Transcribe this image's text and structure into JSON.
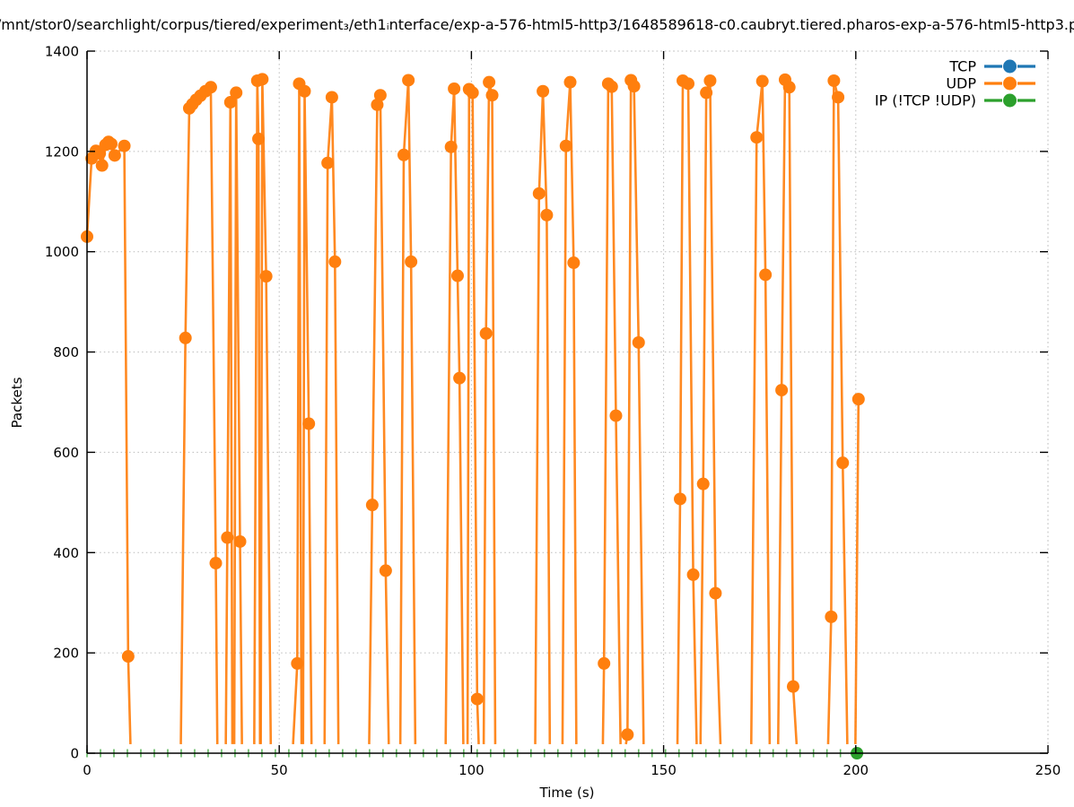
{
  "chart_data": {
    "type": "line",
    "title": "/mnt/stor0/searchlight/corpus/tiered/experiment₃/eth1ᵢnterface/exp-a-576-html5-http3/1648589618-c0.caubryt.tiered.pharos-exp-a-576-html5-http3.p",
    "xlabel": "Time (s)",
    "ylabel": "Packets",
    "xlim": [
      0,
      250
    ],
    "ylim": [
      0,
      1400
    ],
    "xticks": [
      0,
      50,
      100,
      150,
      200,
      250
    ],
    "yticks": [
      0,
      200,
      400,
      600,
      800,
      1000,
      1200,
      1400
    ],
    "grid": "dotted",
    "grid_color": "#bbbbbb",
    "axis_color": "#000000",
    "background": "#ffffff",
    "legend_position": "top-right-inside",
    "marker_min_value": 25,
    "series": [
      {
        "name": "TCP",
        "color": "#1f77b4",
        "segments": []
      },
      {
        "name": "UDP",
        "color": "#ff7f0e",
        "segments": [
          [
            [
              0,
              1030
            ],
            [
              1.2,
              1186
            ],
            [
              2.3,
              1201
            ],
            [
              3.3,
              1196
            ],
            [
              3.9,
              1172
            ],
            [
              4.8,
              1213
            ],
            [
              5.6,
              1219
            ],
            [
              6.3,
              1215
            ],
            [
              7.2,
              1192
            ],
            [
              9.7,
              1211
            ],
            [
              10.7,
              193
            ],
            [
              11.3,
              18
            ]
          ],
          [
            [
              24.4,
              18
            ],
            [
              25.6,
              828
            ],
            [
              26.6,
              1286
            ],
            [
              27.4,
              1294
            ],
            [
              28.4,
              1303
            ],
            [
              29.5,
              1311
            ],
            [
              30.8,
              1320
            ],
            [
              32.2,
              1328
            ],
            [
              33.5,
              379
            ],
            [
              33.9,
              18
            ]
          ],
          [
            [
              36.1,
              18
            ],
            [
              36.5,
              430
            ],
            [
              37.3,
              1298
            ],
            [
              37.8,
              18
            ]
          ],
          [
            [
              38.3,
              18
            ],
            [
              38.8,
              1317
            ],
            [
              39.8,
              422
            ],
            [
              40.3,
              18
            ]
          ],
          [
            [
              43.5,
              18
            ],
            [
              44.3,
              1341
            ],
            [
              44.6,
              1225
            ],
            [
              45.0,
              18
            ]
          ],
          [
            [
              45.2,
              18
            ],
            [
              45.6,
              1344
            ],
            [
              46.6,
              951
            ],
            [
              47.8,
              18
            ]
          ],
          [
            [
              53.6,
              18
            ],
            [
              54.7,
              179
            ],
            [
              55.2,
              1335
            ],
            [
              55.8,
              18
            ]
          ],
          [
            [
              56.2,
              18
            ],
            [
              56.6,
              1320
            ],
            [
              57.7,
              657
            ],
            [
              58.4,
              18
            ]
          ],
          [
            [
              61.8,
              18
            ],
            [
              62.6,
              1177
            ],
            [
              63.7,
              1308
            ],
            [
              64.5,
              980
            ],
            [
              65.4,
              18
            ]
          ],
          [
            [
              73.4,
              18
            ],
            [
              74.2,
              495
            ],
            [
              75.5,
              1293
            ],
            [
              76.3,
              1312
            ],
            [
              77.7,
              364
            ],
            [
              78.5,
              18
            ]
          ],
          [
            [
              81.5,
              18
            ],
            [
              82.4,
              1193
            ],
            [
              83.6,
              1342
            ],
            [
              84.3,
              980
            ],
            [
              85.4,
              18
            ]
          ],
          [
            [
              93.3,
              18
            ],
            [
              94.7,
              1209
            ],
            [
              95.5,
              1325
            ],
            [
              96.4,
              952
            ],
            [
              96.9,
              748
            ],
            [
              97.9,
              18
            ]
          ],
          [
            [
              99.0,
              18
            ],
            [
              99.4,
              1324
            ],
            [
              100.3,
              1317
            ],
            [
              101.5,
              108
            ],
            [
              101.9,
              18
            ]
          ],
          [
            [
              103.2,
              18
            ],
            [
              103.8,
              837
            ],
            [
              104.6,
              1338
            ],
            [
              105.4,
              1312
            ],
            [
              106.2,
              18
            ]
          ],
          [
            [
              116.6,
              18
            ],
            [
              117.6,
              1116
            ],
            [
              118.6,
              1320
            ],
            [
              119.6,
              1073
            ],
            [
              120.4,
              18
            ]
          ],
          [
            [
              123.7,
              18
            ],
            [
              124.6,
              1211
            ],
            [
              125.7,
              1338
            ],
            [
              126.6,
              978
            ],
            [
              127.3,
              18
            ]
          ],
          [
            [
              134.2,
              18
            ],
            [
              134.5,
              179
            ],
            [
              135.6,
              1335
            ],
            [
              136.5,
              1329
            ],
            [
              137.6,
              673
            ],
            [
              138.8,
              18
            ]
          ],
          [
            [
              140.2,
              18
            ],
            [
              140.6,
              37
            ],
            [
              141.5,
              1342
            ],
            [
              142.3,
              1330
            ],
            [
              143.5,
              819
            ],
            [
              144.8,
              18
            ]
          ],
          [
            [
              153.6,
              18
            ],
            [
              154.3,
              507
            ],
            [
              155.0,
              1341
            ],
            [
              156.4,
              1335
            ],
            [
              157.7,
              356
            ],
            [
              158.6,
              18
            ]
          ],
          [
            [
              159.6,
              18
            ],
            [
              160.3,
              537
            ],
            [
              161.1,
              1317
            ],
            [
              162.1,
              1341
            ],
            [
              163.5,
              319
            ],
            [
              164.8,
              18
            ]
          ],
          [
            [
              172.8,
              18
            ],
            [
              174.2,
              1228
            ],
            [
              175.7,
              1340
            ],
            [
              176.5,
              954
            ],
            [
              177.6,
              18
            ]
          ],
          [
            [
              179.8,
              18
            ],
            [
              180.7,
              724
            ],
            [
              181.6,
              1343
            ],
            [
              182.7,
              1328
            ],
            [
              183.7,
              133
            ],
            [
              184.6,
              18
            ]
          ],
          [
            [
              192.8,
              18
            ],
            [
              193.6,
              272
            ],
            [
              194.3,
              1341
            ],
            [
              195.4,
              1308
            ],
            [
              196.6,
              579
            ],
            [
              197.8,
              18
            ]
          ],
          [
            [
              199.9,
              18
            ],
            [
              200.7,
              706
            ]
          ]
        ]
      },
      {
        "name": "IP (!TCP  !UDP)",
        "color": "#2ca02c",
        "zero_tick_markers": {
          "t_start": 0,
          "t_end": 199.5,
          "step": 3.5,
          "value": 0
        },
        "end_point": [
          200.3,
          0
        ],
        "segments": []
      }
    ]
  }
}
